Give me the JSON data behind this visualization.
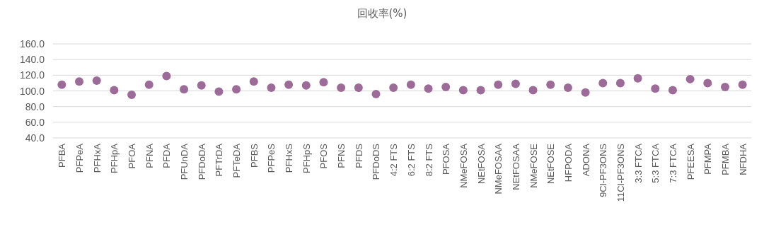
{
  "chart_data": {
    "type": "scatter",
    "title": "回收率(%)",
    "categories": [
      "PFBA",
      "PFPeA",
      "PFHxA",
      "PFHpA",
      "PFOA",
      "PFNA",
      "PFDA",
      "PFUnDA",
      "PFDoDA",
      "PFTrDA",
      "PFTeDA",
      "PFBS",
      "PFPeS",
      "PFHxS",
      "PFHpS",
      "PFOS",
      "PFNS",
      "PFDS",
      "PFDoDS",
      "4:2 FTS",
      "6:2 FTS",
      "8:2 FTS",
      "PFOSA",
      "NMeFOSA",
      "NEtFOSA",
      "NMeFOSAA",
      "NEtFOSAA",
      "NMeFOSE",
      "NEtFOSE",
      "HFPODA",
      "ADONA",
      "9Cl-PF3ONS",
      "11Cl-PF3ONS",
      "3:3 FTCA",
      "5:3 FTCA",
      "7:3 FTCA",
      "PFEESA",
      "PFMPA",
      "PFMBA",
      "NFDHA"
    ],
    "values": [
      108,
      112,
      113,
      101,
      95,
      108,
      119,
      102,
      107,
      99,
      102,
      112,
      104,
      108,
      107,
      111,
      104,
      104,
      96,
      104,
      108,
      103,
      105,
      101,
      101,
      108,
      109,
      101,
      108,
      104,
      98,
      110,
      110,
      116,
      103,
      101,
      115,
      110,
      105,
      108
    ],
    "color": "#9c6b98",
    "marker": "circle",
    "grid": "y",
    "ylim": [
      40,
      160
    ],
    "yticks": [
      {
        "value": 40,
        "label": "40.0"
      },
      {
        "value": 60,
        "label": "60.0"
      },
      {
        "value": 80,
        "label": "80.0"
      },
      {
        "value": 100,
        "label": "100.0"
      },
      {
        "value": 120,
        "label": "120.0"
      },
      {
        "value": 140,
        "label": "140.0"
      },
      {
        "value": 160,
        "label": "160.0"
      }
    ]
  }
}
